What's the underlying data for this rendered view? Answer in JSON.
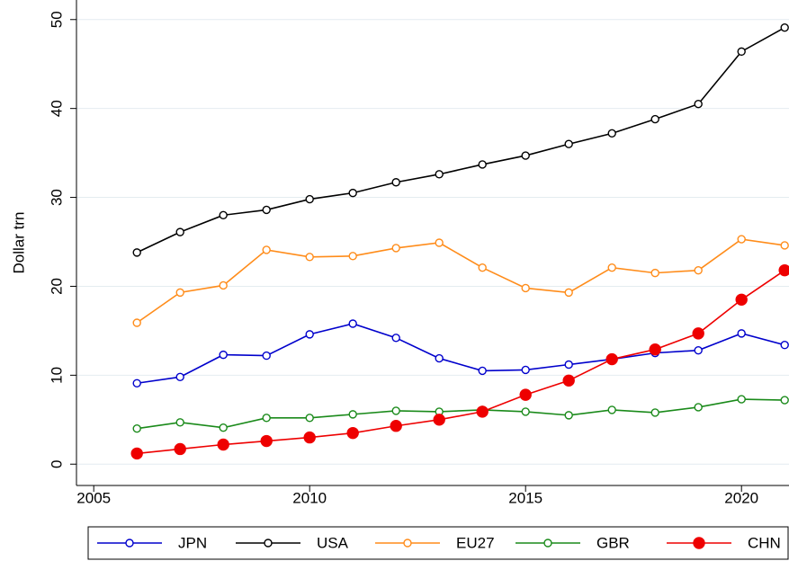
{
  "chart_data": {
    "type": "line",
    "y_label": "Dollar trn",
    "x": [
      2006,
      2007,
      2008,
      2009,
      2010,
      2011,
      2012,
      2013,
      2014,
      2015,
      2016,
      2017,
      2018,
      2019,
      2020,
      2021
    ],
    "series": [
      {
        "name": "JPN",
        "color": "#0000cc",
        "marker": "hollow",
        "values": [
          9.1,
          9.8,
          12.3,
          12.2,
          14.6,
          15.8,
          14.2,
          11.9,
          10.5,
          10.6,
          11.2,
          11.8,
          12.5,
          12.8,
          14.7,
          13.4
        ]
      },
      {
        "name": "USA",
        "color": "#000000",
        "marker": "hollow",
        "values": [
          23.8,
          26.1,
          28.0,
          28.6,
          29.8,
          30.5,
          31.7,
          32.6,
          33.7,
          34.7,
          36.0,
          37.2,
          38.8,
          40.5,
          46.4,
          49.1
        ]
      },
      {
        "name": "EU27",
        "color": "#ff8c1a",
        "marker": "hollow",
        "values": [
          15.9,
          19.3,
          20.1,
          24.1,
          23.3,
          23.4,
          24.3,
          24.9,
          22.1,
          19.8,
          19.3,
          22.1,
          21.5,
          21.8,
          25.3,
          24.6
        ]
      },
      {
        "name": "GBR",
        "color": "#1a8a1a",
        "marker": "hollow",
        "values": [
          4.0,
          4.7,
          4.1,
          5.2,
          5.2,
          5.6,
          6.0,
          5.9,
          6.1,
          5.9,
          5.5,
          6.1,
          5.8,
          6.4,
          7.3,
          7.2
        ]
      },
      {
        "name": "CHN",
        "color": "#ee0000",
        "marker": "filled",
        "values": [
          1.2,
          1.7,
          2.2,
          2.6,
          3.0,
          3.5,
          4.3,
          5.0,
          5.9,
          7.8,
          9.4,
          11.8,
          12.9,
          14.7,
          18.5,
          21.8
        ]
      }
    ],
    "xlim": [
      2004.6,
      2021.1
    ],
    "xticks": [
      2005,
      2010,
      2015,
      2020
    ],
    "ylim": [
      -2.4,
      52.2
    ],
    "yticks": [
      0,
      10,
      20,
      30,
      40,
      50
    ],
    "grid": true,
    "legend": "bottom"
  }
}
